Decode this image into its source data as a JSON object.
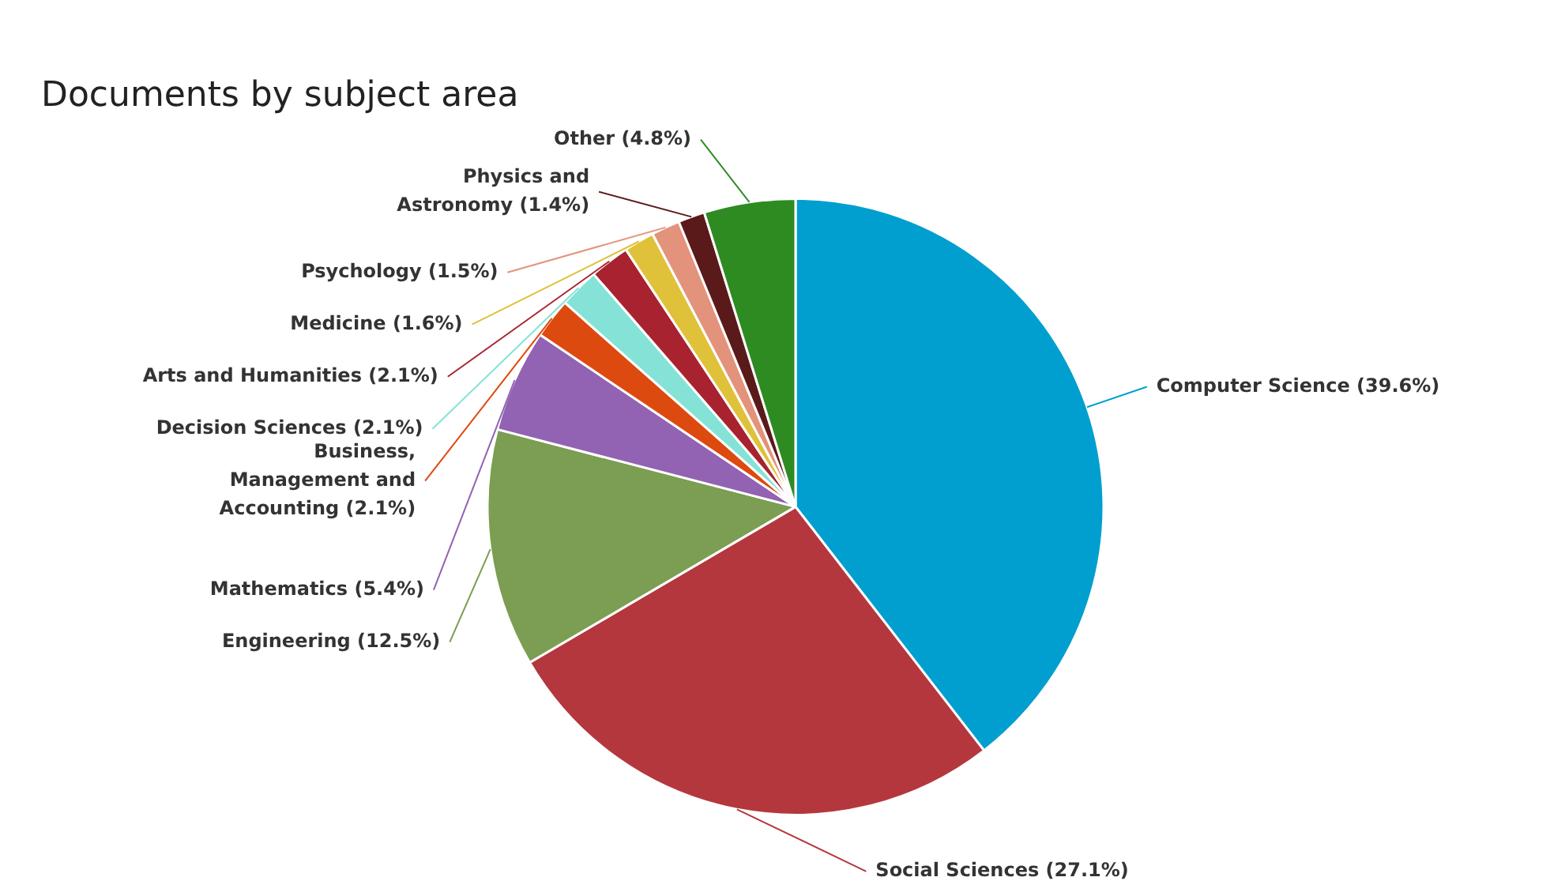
{
  "chart_data": {
    "type": "pie",
    "title": "Documents by subject area",
    "categories": [
      "Computer Science",
      "Social Sciences",
      "Engineering",
      "Mathematics",
      "Business, Management and Accounting",
      "Decision Sciences",
      "Arts and Humanities",
      "Medicine",
      "Psychology",
      "Physics and Astronomy",
      "Other"
    ],
    "values": [
      39.6,
      27.1,
      12.5,
      5.4,
      2.1,
      2.1,
      2.1,
      1.6,
      1.5,
      1.4,
      4.8
    ],
    "value_labels": [
      "(39.6%)",
      "(27.1%)",
      "(12.5%)",
      "(5.4%)",
      "(2.1%)",
      "(2.1%)",
      "(2.1%)",
      "(1.6%)",
      "(1.5%)",
      "(1.4%)",
      "(4.8%)"
    ],
    "colors": [
      "#009fcf",
      "#b5373e",
      "#7b9e52",
      "#9262b3",
      "#dd4a0f",
      "#84e3d6",
      "#a8232f",
      "#e0c13a",
      "#e3937b",
      "#5b1a1a",
      "#2e8b22"
    ],
    "legend": false
  }
}
